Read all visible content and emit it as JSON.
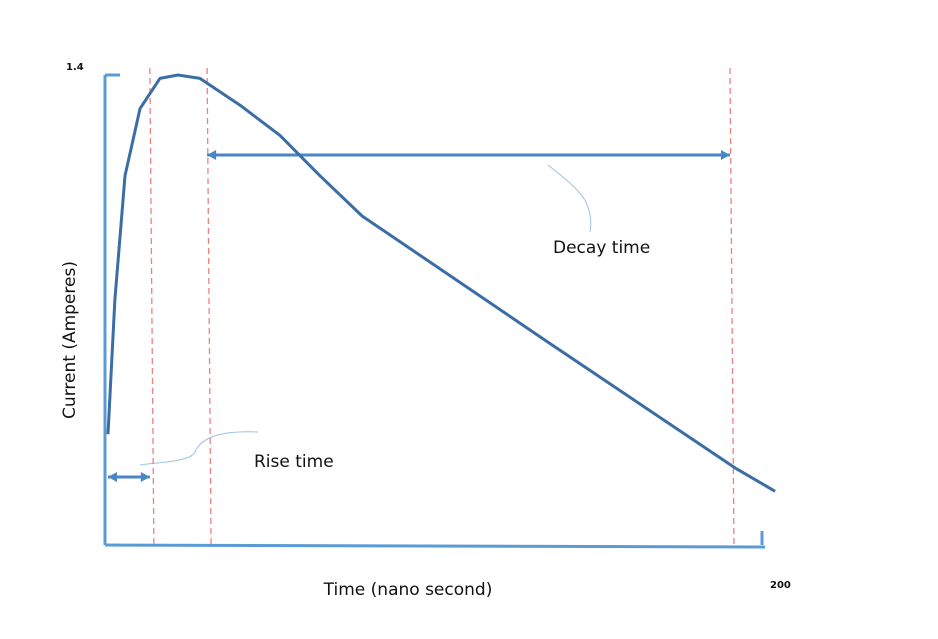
{
  "chart_data": {
    "type": "line",
    "x_label": "Time (nano second)",
    "y_label": "Current (Amperes)",
    "x": [
      0,
      2.1,
      5.2,
      9.8,
      15.9,
      21.4,
      28.1,
      40.4,
      52.6,
      64.8,
      77.7,
      135.2,
      191.7,
      204
    ],
    "series": [
      {
        "color": "#3a6ea5",
        "values": [
          0.33,
          0.73,
          1.1,
          1.3,
          1.39,
          1.4,
          1.39,
          1.31,
          1.22,
          1.1,
          0.98,
          0.6,
          0.23,
          0.16
        ]
      }
    ],
    "xlim": [
      0,
      200
    ],
    "ylim": [
      0,
      1.4
    ],
    "xticks": [
      200
    ],
    "yticks": [
      1.4
    ],
    "markers": [
      12.8,
      30.3,
      190.2
    ],
    "marker_color": "#f08080",
    "annotations": [
      "Rise time",
      "Decay time"
    ]
  }
}
